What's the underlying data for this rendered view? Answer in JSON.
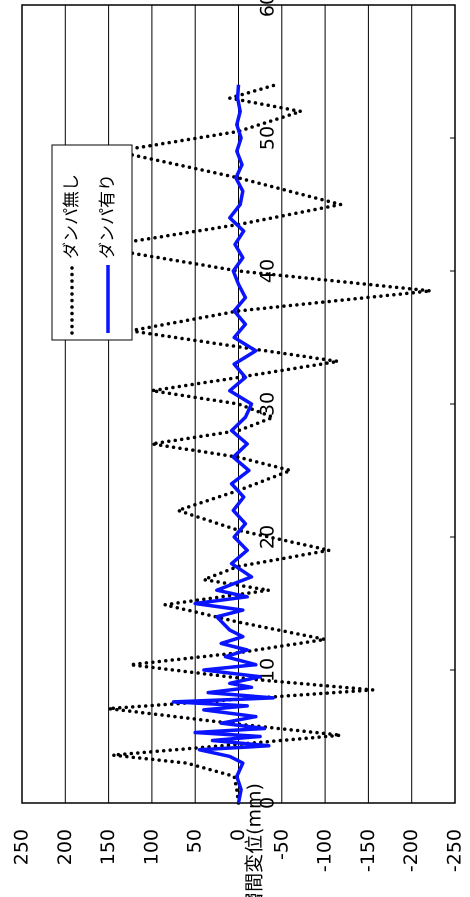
{
  "chart_data": {
    "type": "line",
    "y_label": "層間変位(mm)",
    "xlim": [
      0,
      60
    ],
    "xticks": [
      0,
      10,
      20,
      30,
      40,
      50,
      60
    ],
    "ylim": [
      -250,
      250
    ],
    "yticks": [
      250,
      200,
      150,
      100,
      50,
      0,
      -50,
      -100,
      -150,
      -200,
      -250
    ],
    "grid": true,
    "legend": "upper left",
    "series": [
      {
        "name": "ダンパ無し",
        "color": "#000000",
        "style": "dotted",
        "x": [
          0,
          1,
          2,
          3,
          3.6,
          4.3,
          5.1,
          6,
          7.1,
          7.8,
          8.5,
          9.4,
          10.4,
          11.3,
          12.3,
          13.6,
          14.9,
          15.5,
          16,
          16.8,
          17.8,
          19,
          20.5,
          22,
          23.5,
          25,
          26,
          27,
          28,
          29,
          30,
          31,
          32,
          33.2,
          34.3,
          35.5,
          37,
          38.5,
          40,
          41.8,
          43.5,
          45,
          47,
          49,
          50.5,
          52,
          53,
          54
        ],
        "values": [
          0,
          2,
          5,
          60,
          145,
          20,
          -118,
          10,
          150,
          0,
          -155,
          0,
          125,
          0,
          -100,
          0,
          85,
          20,
          -35,
          40,
          0,
          -105,
          0,
          70,
          0,
          -60,
          0,
          100,
          0,
          -40,
          0,
          100,
          0,
          -115,
          0,
          125,
          0,
          -222,
          0,
          165,
          0,
          -118,
          0,
          142,
          0,
          -72,
          10,
          -43
        ]
      },
      {
        "name": "ダンパ有り",
        "color": "#0a14ff",
        "style": "solid",
        "x": [
          0,
          1,
          2,
          3,
          3.5,
          4,
          4.3,
          4.7,
          5,
          5.3,
          5.6,
          6,
          6.5,
          7,
          7.3,
          7.6,
          7.9,
          8.3,
          8.7,
          9,
          9.5,
          10,
          10.4,
          11,
          11.5,
          12,
          12.5,
          13,
          14,
          14.5,
          15,
          15.5,
          16,
          16.5,
          17,
          18,
          19,
          20,
          21,
          22,
          23,
          24,
          25,
          26,
          27,
          28,
          29,
          30,
          31,
          32,
          33,
          34,
          35,
          36,
          37,
          38,
          39,
          40,
          41,
          42,
          43,
          44,
          45,
          46,
          47,
          48,
          49,
          50,
          51,
          52,
          53,
          54
        ],
        "values": [
          0,
          -3,
          2,
          -5,
          10,
          45,
          -35,
          30,
          -25,
          50,
          -30,
          20,
          -20,
          40,
          -10,
          75,
          -40,
          35,
          -15,
          10,
          -25,
          40,
          -20,
          15,
          -10,
          20,
          -5,
          10,
          25,
          -5,
          50,
          -10,
          25,
          5,
          -15,
          8,
          -10,
          5,
          -8,
          6,
          -6,
          8,
          -12,
          6,
          -10,
          8,
          -8,
          -15,
          10,
          -8,
          5,
          -20,
          5,
          -8,
          5,
          -8,
          0,
          6,
          -5,
          4,
          -6,
          10,
          -2,
          -5,
          3,
          -4,
          2,
          -3,
          2,
          -2,
          1,
          0
        ]
      }
    ]
  }
}
